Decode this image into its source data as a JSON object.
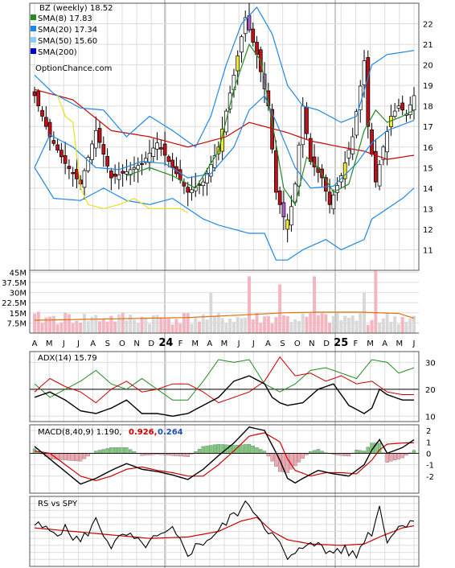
{
  "colors": {
    "sma8": "#228B22",
    "sma20": "#1E88E5",
    "sma50": "#87CEFA",
    "sma200": "#0000CC",
    "bb_upper": "#1E88E5",
    "bb_mid": "#CC0000",
    "yellow_band": "#E8E020",
    "candle_up": "#FFFFFF",
    "candle_down": "#C0101A",
    "candle_purple": "#B05EC8",
    "candle_yellow": "#F2EA2A",
    "vol_up": "#D9D9D9",
    "vol_down": "#F4B6C0",
    "vol_avg": "#E07010",
    "grid": "#DDDDDD",
    "adx_plus": "#228B22",
    "adx_minus": "#CC0000",
    "adx": "#000000",
    "macd_val": "#CC0000",
    "macd_sig": "#1E4FB0",
    "hist_pos": "#7CCB7C",
    "hist_neg": "#F4A6B0",
    "rs_line": "#000000",
    "rs_ma": "#CC0000"
  },
  "legend": [
    {
      "label": "BZ (weekly) 18.52",
      "swatch": "none"
    },
    {
      "label": "SMA(8) 17.83",
      "swatch": "sma8"
    },
    {
      "label": "SMA(20) 17.34",
      "swatch": "sma20"
    },
    {
      "label": "SMA(50) 15.60",
      "swatch": "sma50"
    },
    {
      "label": "SMA(200)",
      "swatch": "sma200"
    }
  ],
  "watermark": "OptionChance.com",
  "chart_data": [
    {
      "type": "candlestick",
      "title": "BZ (weekly) 18.52",
      "ylim": [
        10,
        23
      ],
      "y_ticks": [
        11,
        12,
        13,
        14,
        15,
        16,
        17,
        18,
        19,
        20,
        21,
        22
      ],
      "x_ticks": [
        "A",
        "M",
        "J",
        "J",
        "A",
        "S",
        "O",
        "N",
        "D",
        "24",
        "F",
        "M",
        "A",
        "M",
        "J",
        "J",
        "A",
        "S",
        "O",
        "N",
        "D",
        "25",
        "F",
        "M",
        "A",
        "M",
        "J"
      ],
      "close_keypoints": [
        [
          0,
          18.5
        ],
        [
          4,
          16.5
        ],
        [
          8,
          15.2
        ],
        [
          12,
          14.2
        ],
        [
          16,
          16.8
        ],
        [
          20,
          14.5
        ],
        [
          24,
          14.8
        ],
        [
          28,
          15.2
        ],
        [
          32,
          16.2
        ],
        [
          36,
          15.0
        ],
        [
          40,
          13.8
        ],
        [
          44,
          14.3
        ],
        [
          48,
          16.0
        ],
        [
          52,
          19.5
        ],
        [
          55,
          22.3
        ],
        [
          58,
          20.5
        ],
        [
          61,
          18.0
        ],
        [
          63,
          13.8
        ],
        [
          66,
          12.0
        ],
        [
          68,
          14.2
        ],
        [
          70,
          18.0
        ],
        [
          72,
          15.3
        ],
        [
          75,
          14.5
        ],
        [
          77,
          13.2
        ],
        [
          80,
          14.6
        ],
        [
          83,
          16.5
        ],
        [
          86,
          20.2
        ],
        [
          87,
          17.0
        ],
        [
          89,
          14.3
        ],
        [
          91,
          16.0
        ],
        [
          93,
          17.5
        ],
        [
          95,
          18.0
        ],
        [
          97,
          17.6
        ],
        [
          99,
          18.5
        ]
      ],
      "sma8_keypoints": [
        [
          24,
          14.6
        ],
        [
          30,
          15.0
        ],
        [
          36,
          14.6
        ],
        [
          42,
          14.0
        ],
        [
          48,
          15.8
        ],
        [
          52,
          18.8
        ],
        [
          56,
          21.0
        ],
        [
          59,
          20.2
        ],
        [
          62,
          17.2
        ],
        [
          65,
          14.0
        ],
        [
          68,
          13.2
        ],
        [
          71,
          15.5
        ],
        [
          74,
          15.0
        ],
        [
          78,
          13.8
        ],
        [
          82,
          14.2
        ],
        [
          86,
          16.8
        ],
        [
          89,
          17.8
        ],
        [
          92,
          17.2
        ],
        [
          96,
          17.5
        ],
        [
          99,
          17.8
        ]
      ],
      "sma20_keypoints": [
        [
          0,
          15.0
        ],
        [
          4,
          16.6
        ],
        [
          10,
          16.0
        ],
        [
          16,
          15.0
        ],
        [
          22,
          14.9
        ],
        [
          28,
          15.3
        ],
        [
          34,
          15.2
        ],
        [
          40,
          14.5
        ],
        [
          46,
          14.7
        ],
        [
          52,
          16.0
        ],
        [
          56,
          17.8
        ],
        [
          60,
          18.5
        ],
        [
          64,
          16.8
        ],
        [
          68,
          15.0
        ],
        [
          72,
          14.0
        ],
        [
          78,
          14.1
        ],
        [
          84,
          15.2
        ],
        [
          88,
          16.2
        ],
        [
          92,
          16.8
        ],
        [
          99,
          17.3
        ]
      ],
      "sma50_keypoints": [
        [
          0,
          18.8
        ],
        [
          10,
          18.3
        ],
        [
          20,
          16.8
        ],
        [
          30,
          16.5
        ],
        [
          40,
          16.0
        ],
        [
          50,
          16.5
        ],
        [
          56,
          17.2
        ],
        [
          60,
          17.0
        ],
        [
          66,
          16.7
        ],
        [
          72,
          16.3
        ],
        [
          80,
          16.0
        ],
        [
          86,
          15.8
        ],
        [
          92,
          15.4
        ],
        [
          99,
          15.6
        ]
      ],
      "bb_upper_keypoints": [
        [
          0,
          19.5
        ],
        [
          5,
          18.6
        ],
        [
          12,
          17.9
        ],
        [
          18,
          17.8
        ],
        [
          24,
          16.5
        ],
        [
          30,
          17.5
        ],
        [
          36,
          16.8
        ],
        [
          42,
          16.0
        ],
        [
          46,
          17.5
        ],
        [
          50,
          20.0
        ],
        [
          54,
          22.0
        ],
        [
          58,
          22.8
        ],
        [
          62,
          21.5
        ],
        [
          66,
          19.0
        ],
        [
          70,
          18.0
        ],
        [
          74,
          17.8
        ],
        [
          80,
          17.2
        ],
        [
          84,
          17.5
        ],
        [
          88,
          20.0
        ],
        [
          92,
          20.5
        ],
        [
          99,
          20.7
        ]
      ],
      "bb_lower_keypoints": [
        [
          0,
          15.0
        ],
        [
          5,
          13.5
        ],
        [
          12,
          13.4
        ],
        [
          18,
          14.0
        ],
        [
          24,
          13.4
        ],
        [
          30,
          13.2
        ],
        [
          36,
          13.5
        ],
        [
          40,
          13.0
        ],
        [
          44,
          12.5
        ],
        [
          48,
          12.2
        ],
        [
          52,
          12.0
        ],
        [
          56,
          11.8
        ],
        [
          60,
          11.8
        ],
        [
          63,
          10.5
        ],
        [
          66,
          10.5
        ],
        [
          70,
          11.0
        ],
        [
          76,
          11.5
        ],
        [
          80,
          11.0
        ],
        [
          86,
          11.5
        ],
        [
          88,
          12.5
        ],
        [
          92,
          13.0
        ],
        [
          96,
          13.5
        ],
        [
          99,
          14.0
        ]
      ],
      "yellow_keypoints": [
        [
          6,
          18.5
        ],
        [
          8,
          17.5
        ],
        [
          10,
          17.2
        ],
        [
          12,
          14.0
        ],
        [
          14,
          13.2
        ],
        [
          18,
          13.0
        ],
        [
          22,
          13.2
        ],
        [
          26,
          13.5
        ],
        [
          30,
          13.0
        ],
        [
          34,
          13.0
        ],
        [
          38,
          13.0
        ],
        [
          40,
          12.8
        ]
      ]
    },
    {
      "type": "bar",
      "title": "Volume",
      "ylim": [
        0,
        50
      ],
      "y_ticks": [
        "45M",
        "37.5M",
        "30M",
        "22.5M",
        "15M",
        "7.5M"
      ],
      "y_tick_values": [
        45,
        37.5,
        30,
        22.5,
        15,
        7.5
      ],
      "avg_keypoints": [
        [
          0,
          9.5
        ],
        [
          20,
          10.5
        ],
        [
          40,
          11.5
        ],
        [
          55,
          13.5
        ],
        [
          65,
          15.0
        ],
        [
          75,
          15.5
        ],
        [
          85,
          15.5
        ],
        [
          95,
          14.5
        ],
        [
          99,
          11.0
        ]
      ]
    },
    {
      "type": "line",
      "title": "ADX(14) 15.79",
      "ylim": [
        8,
        34
      ],
      "y_ticks": [
        10,
        20,
        30
      ],
      "adx_plus_keypoints": [
        [
          0,
          22
        ],
        [
          4,
          17
        ],
        [
          8,
          20
        ],
        [
          12,
          23
        ],
        [
          16,
          27
        ],
        [
          20,
          22
        ],
        [
          24,
          20
        ],
        [
          28,
          24
        ],
        [
          32,
          20
        ],
        [
          36,
          16
        ],
        [
          40,
          16
        ],
        [
          44,
          23
        ],
        [
          48,
          31
        ],
        [
          52,
          30
        ],
        [
          56,
          31
        ],
        [
          60,
          22
        ],
        [
          64,
          19
        ],
        [
          68,
          22
        ],
        [
          72,
          27
        ],
        [
          76,
          28
        ],
        [
          80,
          26
        ],
        [
          84,
          24
        ],
        [
          88,
          31
        ],
        [
          92,
          30
        ],
        [
          95,
          26
        ],
        [
          99,
          28
        ]
      ],
      "adx_minus_keypoints": [
        [
          0,
          19
        ],
        [
          4,
          24
        ],
        [
          8,
          21
        ],
        [
          12,
          19
        ],
        [
          16,
          15
        ],
        [
          20,
          20
        ],
        [
          24,
          23
        ],
        [
          28,
          19
        ],
        [
          32,
          20
        ],
        [
          36,
          22
        ],
        [
          40,
          22
        ],
        [
          44,
          19
        ],
        [
          48,
          15
        ],
        [
          52,
          17
        ],
        [
          56,
          19
        ],
        [
          60,
          23
        ],
        [
          64,
          32
        ],
        [
          68,
          25
        ],
        [
          72,
          26
        ],
        [
          76,
          23
        ],
        [
          80,
          25
        ],
        [
          84,
          22
        ],
        [
          88,
          23
        ],
        [
          92,
          19
        ],
        [
          96,
          18
        ],
        [
          99,
          18
        ]
      ],
      "adx_keypoints": [
        [
          0,
          17
        ],
        [
          4,
          19
        ],
        [
          8,
          16
        ],
        [
          12,
          12
        ],
        [
          16,
          11
        ],
        [
          20,
          13
        ],
        [
          24,
          16
        ],
        [
          28,
          11
        ],
        [
          32,
          11
        ],
        [
          36,
          10
        ],
        [
          40,
          11
        ],
        [
          44,
          14
        ],
        [
          48,
          17
        ],
        [
          52,
          23
        ],
        [
          56,
          25
        ],
        [
          60,
          22
        ],
        [
          62,
          17
        ],
        [
          64,
          15
        ],
        [
          66,
          14
        ],
        [
          70,
          15
        ],
        [
          74,
          20
        ],
        [
          78,
          22
        ],
        [
          82,
          14
        ],
        [
          86,
          11
        ],
        [
          88,
          13
        ],
        [
          90,
          20
        ],
        [
          92,
          18
        ],
        [
          96,
          16
        ],
        [
          99,
          16
        ]
      ]
    },
    {
      "type": "line",
      "title": "MACD(8,40,9) 1.190, 0.926, 0.264",
      "values_label": [
        "MACD(8,40,9) 1.190,",
        "0.926,",
        "0.264"
      ],
      "ylim": [
        -3.5,
        2.5
      ],
      "y_ticks": [
        2,
        1,
        0,
        -1,
        -2
      ],
      "macd_keypoints": [
        [
          0,
          0.6
        ],
        [
          4,
          -0.5
        ],
        [
          8,
          -1.6
        ],
        [
          12,
          -2.7
        ],
        [
          16,
          -2.2
        ],
        [
          20,
          -1.5
        ],
        [
          24,
          -0.9
        ],
        [
          28,
          -1.4
        ],
        [
          32,
          -1.6
        ],
        [
          36,
          -1.9
        ],
        [
          40,
          -2.3
        ],
        [
          44,
          -1.4
        ],
        [
          48,
          -0.2
        ],
        [
          52,
          0.9
        ],
        [
          56,
          2.3
        ],
        [
          60,
          2.0
        ],
        [
          64,
          -0.6
        ],
        [
          66,
          -2.2
        ],
        [
          68,
          -2.6
        ],
        [
          70,
          -2.2
        ],
        [
          74,
          -1.5
        ],
        [
          78,
          -1.8
        ],
        [
          82,
          -2.0
        ],
        [
          86,
          -1.0
        ],
        [
          88,
          0.3
        ],
        [
          90,
          1.2
        ],
        [
          92,
          0.0
        ],
        [
          96,
          0.5
        ],
        [
          99,
          1.19
        ]
      ],
      "signal_keypoints": [
        [
          0,
          0.2
        ],
        [
          4,
          0.0
        ],
        [
          8,
          -1.0
        ],
        [
          12,
          -2.0
        ],
        [
          16,
          -2.4
        ],
        [
          20,
          -2.0
        ],
        [
          24,
          -1.4
        ],
        [
          28,
          -1.2
        ],
        [
          32,
          -1.5
        ],
        [
          36,
          -1.7
        ],
        [
          40,
          -2.0
        ],
        [
          44,
          -2.0
        ],
        [
          48,
          -1.0
        ],
        [
          52,
          0.2
        ],
        [
          56,
          1.5
        ],
        [
          60,
          1.8
        ],
        [
          64,
          1.0
        ],
        [
          66,
          -0.5
        ],
        [
          68,
          -1.5
        ],
        [
          72,
          -2.0
        ],
        [
          76,
          -1.7
        ],
        [
          80,
          -1.7
        ],
        [
          84,
          -1.8
        ],
        [
          88,
          -0.6
        ],
        [
          90,
          0.3
        ],
        [
          92,
          0.8
        ],
        [
          96,
          0.9
        ],
        [
          99,
          0.926
        ]
      ]
    },
    {
      "type": "line",
      "title": "RS vs SPY",
      "ylim": [
        0,
        10
      ],
      "rs_keypoints": [
        [
          0,
          6.0
        ],
        [
          4,
          5.0
        ],
        [
          8,
          5.2
        ],
        [
          12,
          3.5
        ],
        [
          16,
          6.5
        ],
        [
          20,
          3.0
        ],
        [
          24,
          4.5
        ],
        [
          28,
          3.0
        ],
        [
          32,
          4.0
        ],
        [
          36,
          5.0
        ],
        [
          40,
          2.0
        ],
        [
          44,
          3.5
        ],
        [
          48,
          5.0
        ],
        [
          52,
          7.5
        ],
        [
          56,
          9.0
        ],
        [
          60,
          6.0
        ],
        [
          64,
          3.0
        ],
        [
          66,
          1.0
        ],
        [
          68,
          1.5
        ],
        [
          72,
          4.0
        ],
        [
          76,
          2.0
        ],
        [
          80,
          2.5
        ],
        [
          84,
          1.5
        ],
        [
          86,
          4.0
        ],
        [
          88,
          5.0
        ],
        [
          90,
          8.5
        ],
        [
          92,
          4.0
        ],
        [
          96,
          6.0
        ],
        [
          99,
          7.0
        ]
      ],
      "rs_ma_keypoints": [
        [
          0,
          5.5
        ],
        [
          10,
          5.0
        ],
        [
          20,
          4.5
        ],
        [
          30,
          4.0
        ],
        [
          40,
          4.2
        ],
        [
          48,
          5.0
        ],
        [
          54,
          6.5
        ],
        [
          58,
          7.0
        ],
        [
          62,
          5.0
        ],
        [
          66,
          3.8
        ],
        [
          72,
          3.2
        ],
        [
          80,
          3.0
        ],
        [
          86,
          3.2
        ],
        [
          90,
          4.2
        ],
        [
          96,
          5.5
        ],
        [
          99,
          5.8
        ]
      ]
    }
  ]
}
